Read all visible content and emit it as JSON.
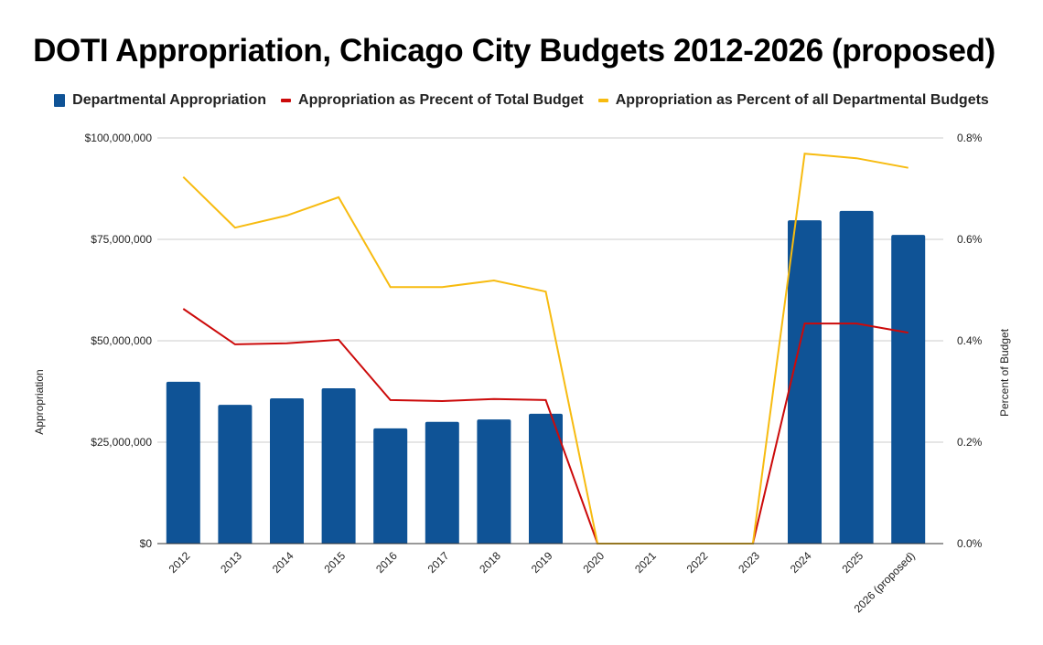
{
  "chart_data": {
    "type": "bar",
    "title": "DOTI Appropriation, Chicago City Budgets 2012-2026 (proposed)",
    "xlabel": "",
    "ylabel": "Appropriation",
    "y2label": "Percent of Budget",
    "categories": [
      "2012",
      "2013",
      "2014",
      "2015",
      "2016",
      "2017",
      "2018",
      "2019",
      "2020",
      "2021",
      "2022",
      "2023",
      "2024",
      "2025",
      "2026 (proposed)"
    ],
    "ylim": [
      0,
      100000000
    ],
    "y2lim": [
      0,
      0.8
    ],
    "yticks": [
      {
        "value": 0,
        "label": "$0"
      },
      {
        "value": 25000000,
        "label": "$25,000,000"
      },
      {
        "value": 50000000,
        "label": "$50,000,000"
      },
      {
        "value": 75000000,
        "label": "$75,000,000"
      },
      {
        "value": 100000000,
        "label": "$100,000,000"
      }
    ],
    "y2ticks": [
      {
        "value": 0,
        "label": "0.0%"
      },
      {
        "value": 0.2,
        "label": "0.2%"
      },
      {
        "value": 0.4,
        "label": "0.4%"
      },
      {
        "value": 0.6,
        "label": "0.6%"
      },
      {
        "value": 0.8,
        "label": "0.8%"
      }
    ],
    "grid": true,
    "legend_position": "top",
    "series": [
      {
        "name": "Departmental Appropriation",
        "type": "bar",
        "axis": "left",
        "color": "#0f5396",
        "values": [
          39900000,
          34200000,
          35800000,
          38300000,
          28400000,
          30000000,
          30600000,
          32000000,
          0,
          0,
          0,
          0,
          79700000,
          82000000,
          76100000
        ]
      },
      {
        "name": "Appropriation as Precent of Total Budget",
        "type": "line",
        "axis": "right",
        "color": "#cc0a0a",
        "values": [
          0.463,
          0.393,
          0.395,
          0.402,
          0.283,
          0.281,
          0.285,
          0.283,
          0,
          0,
          0,
          0,
          0.434,
          0.434,
          0.416
        ]
      },
      {
        "name": "Appropriation as Percent of all Departmental Budgets",
        "type": "line",
        "axis": "right",
        "color": "#f7bb10",
        "values": [
          0.723,
          0.623,
          0.647,
          0.683,
          0.506,
          0.506,
          0.519,
          0.497,
          0,
          0,
          0,
          0,
          0.769,
          0.76,
          0.741
        ]
      }
    ]
  }
}
